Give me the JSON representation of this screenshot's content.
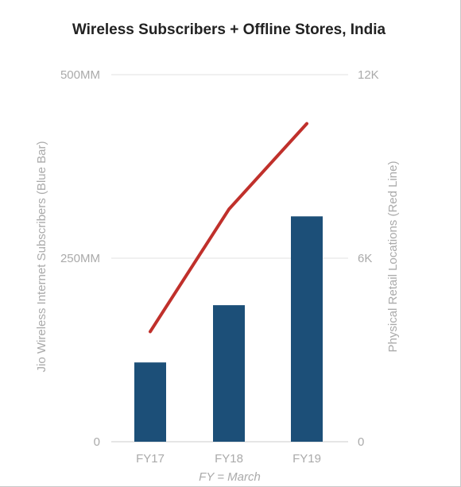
{
  "chart_data": {
    "type": "bar+line",
    "title": "Wireless Subscribers + Offline Stores, India",
    "xlabel": "FY = March",
    "categories": [
      "FY17",
      "FY18",
      "FY19"
    ],
    "y_left": {
      "label": "Jio Wireless Internet Subscribers (Blue Bar)",
      "range": [
        0,
        500
      ],
      "ticks": [
        0,
        250,
        500
      ],
      "tick_labels": [
        "0",
        "250MM",
        "500MM"
      ]
    },
    "y_right": {
      "label": "Physical Retail Locations (Red Line)",
      "range": [
        0,
        12000
      ],
      "ticks": [
        0,
        6000,
        12000
      ],
      "tick_labels": [
        "0",
        "6K",
        "12K"
      ]
    },
    "series": [
      {
        "type": "bar",
        "axis": "left",
        "values": [
          108,
          186,
          307
        ],
        "color": "#1c4f78"
      },
      {
        "type": "line",
        "axis": "right",
        "values": [
          3600,
          7600,
          10400
        ],
        "color": "#c0302b"
      }
    ],
    "grid": true,
    "legend": "none"
  }
}
